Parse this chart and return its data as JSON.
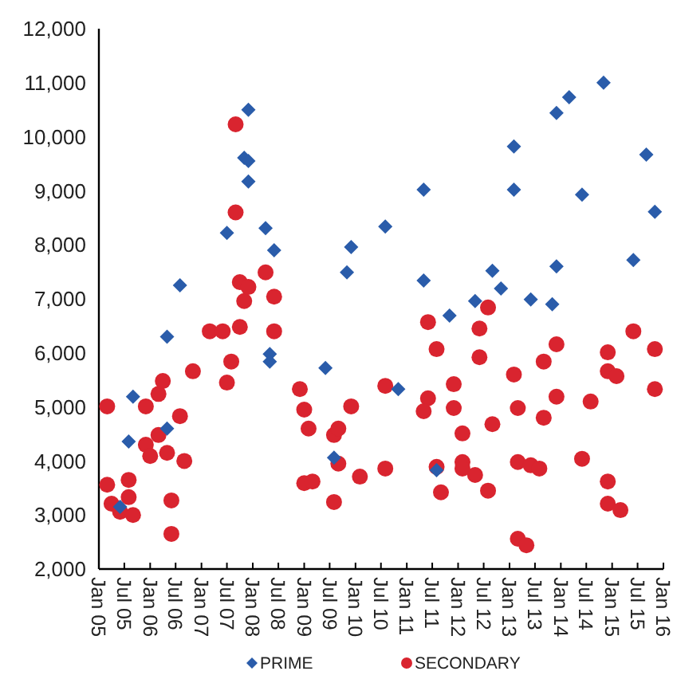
{
  "chart_data": {
    "type": "scatter",
    "xlim": [
      "2005-01",
      "2016-01"
    ],
    "ylim": [
      2000,
      12000
    ],
    "xticks": [
      {
        "value": "2005-01",
        "label": "Jan 05"
      },
      {
        "value": "2005-07",
        "label": "Jul 05"
      },
      {
        "value": "2006-01",
        "label": "Jan 06"
      },
      {
        "value": "2006-07",
        "label": "Jul 06"
      },
      {
        "value": "2007-01",
        "label": "Jan 07"
      },
      {
        "value": "2007-07",
        "label": "Jul 07"
      },
      {
        "value": "2008-01",
        "label": "Jan 08"
      },
      {
        "value": "2008-07",
        "label": "Jul 08"
      },
      {
        "value": "2009-01",
        "label": "Jan 09"
      },
      {
        "value": "2009-07",
        "label": "Jul 09"
      },
      {
        "value": "2010-01",
        "label": "Jan 10"
      },
      {
        "value": "2010-07",
        "label": "Jul 10"
      },
      {
        "value": "2011-01",
        "label": "Jan 11"
      },
      {
        "value": "2011-07",
        "label": "Jul 11"
      },
      {
        "value": "2012-01",
        "label": "Jan 12"
      },
      {
        "value": "2012-07",
        "label": "Jul 12"
      },
      {
        "value": "2013-01",
        "label": "Jan 13"
      },
      {
        "value": "2013-07",
        "label": "Jul 13"
      },
      {
        "value": "2014-01",
        "label": "Jan 14"
      },
      {
        "value": "2014-07",
        "label": "Jul 14"
      },
      {
        "value": "2015-01",
        "label": "Jan 15"
      },
      {
        "value": "2015-07",
        "label": "Jul 15"
      },
      {
        "value": "2016-01",
        "label": "Jan 16"
      }
    ],
    "yticks": [
      {
        "value": 2000,
        "label": "2,000"
      },
      {
        "value": 3000,
        "label": "3,000"
      },
      {
        "value": 4000,
        "label": "4,000"
      },
      {
        "value": 5000,
        "label": "5,000"
      },
      {
        "value": 6000,
        "label": "6,000"
      },
      {
        "value": 7000,
        "label": "7,000"
      },
      {
        "value": 8000,
        "label": "8,000"
      },
      {
        "value": 9000,
        "label": "9,000"
      },
      {
        "value": 10000,
        "label": "10,000"
      },
      {
        "value": 11000,
        "label": "11,000"
      },
      {
        "value": 12000,
        "label": "12,000"
      }
    ],
    "legend": "bottom",
    "series": [
      {
        "name": "PRIME",
        "color": "#2a5caa",
        "marker": "diamond",
        "x": [
          "2005-06",
          "2005-08",
          "2005-09",
          "2006-05",
          "2006-05",
          "2006-08",
          "2007-07",
          "2007-12",
          "2007-11",
          "2007-12",
          "2007-12",
          "2008-04",
          "2008-06",
          "2008-05",
          "2008-05",
          "2009-06",
          "2009-08",
          "2009-11",
          "2009-12",
          "2010-08",
          "2010-11",
          "2011-05",
          "2011-05",
          "2011-08",
          "2011-11",
          "2012-05",
          "2012-09",
          "2012-11",
          "2013-02",
          "2013-02",
          "2013-06",
          "2013-11",
          "2013-12",
          "2013-12",
          "2014-03",
          "2014-06",
          "2014-11",
          "2015-06",
          "2015-09",
          "2015-11"
        ],
        "values": [
          3150,
          4360,
          5190,
          4600,
          6300,
          7250,
          8220,
          10500,
          9610,
          9550,
          9170,
          8310,
          7900,
          5980,
          5840,
          5720,
          4060,
          7490,
          7960,
          8340,
          5330,
          9020,
          7340,
          3830,
          6690,
          6960,
          7520,
          7190,
          9820,
          9020,
          6990,
          6900,
          10440,
          7600,
          10730,
          8930,
          11000,
          7720,
          9670,
          8610
        ]
      },
      {
        "name": "SECONDARY",
        "color": "#d9242f",
        "marker": "circle",
        "x": [
          "2005-03",
          "2005-03",
          "2005-04",
          "2005-06",
          "2005-08",
          "2005-08",
          "2005-09",
          "2005-12",
          "2005-12",
          "2006-01",
          "2006-03",
          "2006-04",
          "2006-03",
          "2006-05",
          "2006-06",
          "2006-06",
          "2006-08",
          "2006-09",
          "2006-11",
          "2007-03",
          "2007-06",
          "2007-07",
          "2007-08",
          "2007-09",
          "2007-09",
          "2007-10",
          "2007-10",
          "2007-11",
          "2007-12",
          "2008-04",
          "2008-06",
          "2008-06",
          "2008-12",
          "2009-01",
          "2009-02",
          "2009-01",
          "2009-03",
          "2009-08",
          "2009-09",
          "2009-08",
          "2009-09",
          "2009-12",
          "2010-02",
          "2010-08",
          "2010-08",
          "2011-06",
          "2011-08",
          "2011-06",
          "2011-05",
          "2011-08",
          "2011-09",
          "2011-12",
          "2011-12",
          "2012-02",
          "2012-02",
          "2012-02",
          "2012-05",
          "2012-08",
          "2012-06",
          "2012-06",
          "2012-08",
          "2012-09",
          "2013-02",
          "2013-03",
          "2013-03",
          "2013-06",
          "2013-08",
          "2013-03",
          "2013-05",
          "2013-09",
          "2013-09",
          "2013-12",
          "2013-12",
          "2014-06",
          "2014-08",
          "2014-12",
          "2014-12",
          "2015-02",
          "2014-12",
          "2014-12",
          "2015-03",
          "2015-06",
          "2015-11",
          "2015-11"
        ],
        "values": [
          5010,
          3560,
          3210,
          3060,
          3650,
          3330,
          3000,
          5010,
          4300,
          4090,
          5240,
          5480,
          4480,
          4150,
          3270,
          2650,
          4830,
          4000,
          5660,
          6400,
          6400,
          5450,
          5840,
          10230,
          8600,
          7310,
          6480,
          6960,
          7220,
          7490,
          7040,
          6400,
          5330,
          4950,
          4600,
          3590,
          3620,
          4480,
          4600,
          3240,
          3950,
          5010,
          3710,
          5390,
          3860,
          6570,
          6070,
          5160,
          4920,
          3890,
          3420,
          5420,
          4980,
          4510,
          3980,
          3860,
          3740,
          6840,
          6450,
          5920,
          3450,
          4680,
          5600,
          4980,
          3980,
          3920,
          3860,
          2560,
          2440,
          5840,
          4800,
          6160,
          5190,
          4040,
          5100,
          6010,
          5660,
          5570,
          3620,
          3210,
          3090,
          6400,
          6070,
          5330
        ]
      }
    ]
  }
}
